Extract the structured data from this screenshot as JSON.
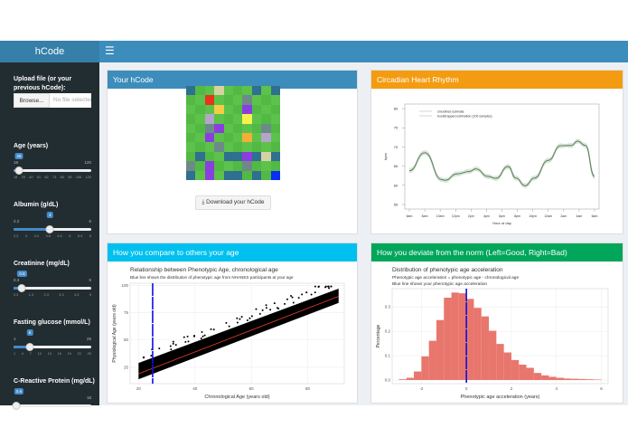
{
  "app": {
    "title": "hCode",
    "menu_icon": "hamburger-icon"
  },
  "sidebar": {
    "upload_label": "Upload file (or your previous hCode):",
    "browse_label": "Browse...",
    "file_placeholder": "No file selected",
    "sliders": [
      {
        "label": "Age (years)",
        "min": "18",
        "max": "120",
        "value": "25",
        "fraction": 0.07,
        "ticks": [
          "18",
          "29",
          "40",
          "51",
          "62",
          "73",
          "84",
          "95",
          "106",
          "120"
        ]
      },
      {
        "label": "Albumin (g/dL)",
        "min": "2.2",
        "max": "6",
        "value": "4",
        "fraction": 0.47,
        "ticks": [
          "2.2",
          "3",
          "3.4",
          "3.8",
          "4.6",
          "5",
          "5.4",
          "6"
        ]
      },
      {
        "label": "Creatinine (mg/dL)",
        "min": "0.3",
        "max": "5",
        "value": "0.8",
        "fraction": 0.11,
        "ticks": [
          "0.3",
          "1.3",
          "2.3",
          "3.3",
          "4.3",
          "5"
        ]
      },
      {
        "label": "Fasting glucose (mmol/L)",
        "min": "1",
        "max": "25",
        "value": "6",
        "fraction": 0.21,
        "ticks": [
          "1",
          "4",
          "7",
          "10",
          "13",
          "16",
          "19",
          "22",
          "25"
        ]
      },
      {
        "label": "C-Reactive Protein (mg/dL)",
        "min": "",
        "max": "18",
        "value": "0.6",
        "fraction": 0.03,
        "ticks": []
      }
    ]
  },
  "boxes": {
    "hcode": {
      "title": "Your hCode",
      "color": "#3c8dbc",
      "download_label": "Download your hCode",
      "download_icon": "download-icon",
      "grid": [
        "BGGEGGGBGB",
        "GGRGGGsGGG",
        "GGGYGGPGGG",
        "GGLGGGyGGG",
        "GGsPGGGGsG",
        "GGPGGGOGLG",
        "GGGsGGGGGG",
        "GBGGBBPBEB",
        "sGPGGGsGGG",
        "BGPGBBGBGD"
      ],
      "palette": {
        "G": "#5cc24a",
        "B": "#2f6f8f",
        "E": "#d6d2a2",
        "R": "#e8341c",
        "s": "#6e8a88",
        "Y": "#f4cc45",
        "P": "#8b3ee0",
        "L": "#b4a6c8",
        "y": "#f6f24a",
        "O": "#f2ae38",
        "D": "#0a2ef2"
      }
    },
    "circadian": {
      "title": "Circadian Heart Rhythm",
      "color": "#f39c12"
    },
    "compare": {
      "title": "How you compare to others your age",
      "color": "#00c0ef"
    },
    "deviate": {
      "title": "How you deviate from the norm (Left=Good, Right=Bad)",
      "color": "#00a65a"
    }
  },
  "chart_data": [
    {
      "type": "line",
      "xlabel": "Hour of day",
      "ylabel": "bpm",
      "legend": [
        "smoothed estimate",
        "bootstrapped estimation (100 samples)"
      ],
      "legend_position": "top-left",
      "x_ticks": [
        "6am",
        "8am",
        "10am",
        "12pm",
        "2pm",
        "4pm",
        "6pm",
        "8pm",
        "10pm",
        "12am",
        "2am",
        "4am",
        "6am"
      ],
      "xlim": [
        6,
        30
      ],
      "ylim": [
        55,
        80
      ],
      "y_ticks": [
        55,
        60,
        65,
        70,
        75,
        80
      ],
      "x": [
        6,
        8,
        10.2,
        10.6,
        12.2,
        13.8,
        14.6,
        16.2,
        17.2,
        18.8,
        19.8,
        21,
        22.2,
        24,
        25.6,
        27,
        27.8,
        28.8,
        30
      ],
      "y": [
        63.8,
        68.5,
        61.5,
        61.3,
        63,
        63.6,
        64.3,
        62.3,
        61.8,
        64.9,
        61.9,
        59.9,
        61.9,
        66.5,
        70.3,
        70.4,
        71.5,
        70.4,
        62.3
      ],
      "line_color": "#5a7a5a"
    },
    {
      "type": "scatter",
      "title": "Relationship between Phenotypic Age, chronological age",
      "subtitle": "Blue line shows the distribution of phenotypic age from NHANES participants at your age",
      "xlabel": "Chronological Age (years old)",
      "ylabel": "Physiological Age (years old)",
      "xlim": [
        17,
        93
      ],
      "ylim": [
        10,
        102
      ],
      "x_ticks": [
        20,
        40,
        60,
        80
      ],
      "y_ticks": [
        25,
        50,
        75,
        100
      ],
      "trend_line": [
        [
          20,
          19
        ],
        [
          91,
          90
        ]
      ],
      "point_band_lower": [
        [
          20,
          14
        ],
        [
          91,
          84
        ]
      ],
      "point_band_upper": [
        [
          20,
          29
        ],
        [
          91,
          97
        ]
      ],
      "vline": 25,
      "trend_color": "#e8402a",
      "vline_color": "#1010e0",
      "point_color": "#000000",
      "grid": true
    },
    {
      "type": "bar",
      "title": "Distribution of phenotypic age acceleration",
      "subtitle": "Phenotypic age acceleration = phenotypic age - chronological age",
      "subtitle2": "Blue line shows your phenotypic age acceleration",
      "xlabel": "Phenotypic age acceleration (years)",
      "ylabel": "Percentage",
      "xlim": [
        -3.3,
        6.3
      ],
      "ylim": [
        -0.015,
        0.375
      ],
      "x_ticks": [
        -2,
        0,
        2,
        4,
        6
      ],
      "y_ticks": [
        "0.0",
        "0.1",
        "0.2",
        "0.3"
      ],
      "bin_start": -3,
      "bin_width": 0.3333,
      "values": [
        0.003,
        0.009,
        0.035,
        0.097,
        0.161,
        0.246,
        0.338,
        0.359,
        0.356,
        0.333,
        0.296,
        0.261,
        0.202,
        0.148,
        0.113,
        0.082,
        0.063,
        0.05,
        0.029,
        0.019,
        0.013,
        0.009,
        0.006,
        0.005,
        0.004,
        0.003,
        0.002
      ],
      "vline": 0,
      "bar_color": "#e8766d",
      "vline_color": "#1010e0",
      "grid": true
    }
  ]
}
